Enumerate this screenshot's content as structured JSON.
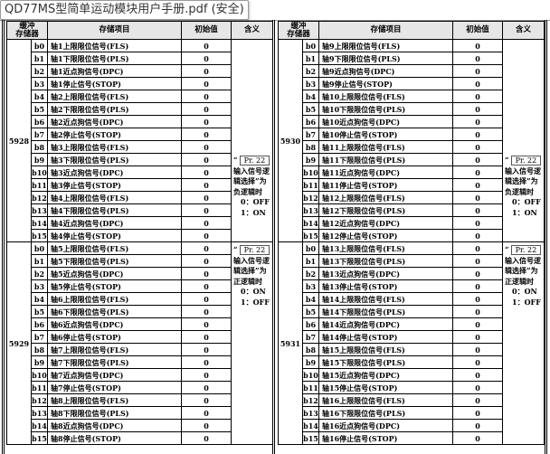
{
  "tooltip": "QD77MS型简单运动模块用户手册.pdf (安全)",
  "headers": {
    "register_line1": "缓冲",
    "register_line2": "存储器",
    "item": "存储项目",
    "init": "初始值",
    "meaning": "含义"
  },
  "notes": {
    "negative": {
      "quote_open": "“",
      "pr": "Pr. 22",
      "text": "输入信号逻辑选择”为负逻辑时",
      "v0": "0：OFF",
      "v1": "1：ON"
    },
    "positive": {
      "quote_open": "“",
      "pr": "Pr. 22",
      "text": "输入信号逻辑选择”为正逻辑时",
      "v0": "0：ON",
      "v1": "1：OFF"
    }
  },
  "tables": [
    {
      "blocks": [
        {
          "register": "5928",
          "rows": [
            {
              "bit": "b0",
              "item": "轴1上限限位信号(FLS)",
              "init": "0"
            },
            {
              "bit": "b1",
              "item": "轴1下限限位信号(PLS)",
              "init": "0"
            },
            {
              "bit": "b2",
              "item": "轴1近点狗信号(DPC)",
              "init": "0"
            },
            {
              "bit": "b3",
              "item": "轴1停止信号(STOP)",
              "init": "0"
            },
            {
              "bit": "b4",
              "item": "轴2上限限位信号(FLS)",
              "init": "0"
            },
            {
              "bit": "b5",
              "item": "轴2下限限位信号(PLS)",
              "init": "0"
            },
            {
              "bit": "b6",
              "item": "轴2近点狗信号(DPC)",
              "init": "0"
            },
            {
              "bit": "b7",
              "item": "轴2停止信号(STOP)",
              "init": "0"
            },
            {
              "bit": "b8",
              "item": "轴3上限限位信号(FLS)",
              "init": "0"
            },
            {
              "bit": "b9",
              "item": "轴3下限限位信号(PLS)",
              "init": "0"
            },
            {
              "bit": "b10",
              "item": "轴3近点狗信号(DPC)",
              "init": "0"
            },
            {
              "bit": "b11",
              "item": "轴3停止信号(STOP)",
              "init": "0"
            },
            {
              "bit": "b12",
              "item": "轴4上限限位信号(FLS)",
              "init": "0"
            },
            {
              "bit": "b13",
              "item": "轴4下限限位信号(PLS)",
              "init": "0"
            },
            {
              "bit": "b14",
              "item": "轴4近点狗信号(DPC)",
              "init": "0"
            },
            {
              "bit": "b15",
              "item": "轴4停止信号(STOP)",
              "init": "0"
            }
          ]
        },
        {
          "register": "5929",
          "rows": [
            {
              "bit": "b0",
              "item": "轴5上限限位信号(FLS)",
              "init": "0"
            },
            {
              "bit": "b1",
              "item": "轴5下限限位信号(PLS)",
              "init": "0"
            },
            {
              "bit": "b2",
              "item": "轴5近点狗信号(DPC)",
              "init": "0"
            },
            {
              "bit": "b3",
              "item": "轴5停止信号(STOP)",
              "init": "0"
            },
            {
              "bit": "b4",
              "item": "轴6上限限位信号(FLS)",
              "init": "0"
            },
            {
              "bit": "b5",
              "item": "轴6下限限位信号(PLS)",
              "init": "0"
            },
            {
              "bit": "b6",
              "item": "轴6近点狗信号(DPC)",
              "init": "0"
            },
            {
              "bit": "b7",
              "item": "轴6停止信号(STOP)",
              "init": "0"
            },
            {
              "bit": "b8",
              "item": "轴7上限限位信号(FLS)",
              "init": "0"
            },
            {
              "bit": "b9",
              "item": "轴7下限限位信号(PLS)",
              "init": "0"
            },
            {
              "bit": "b10",
              "item": "轴7近点狗信号(DPC)",
              "init": "0"
            },
            {
              "bit": "b11",
              "item": "轴7停止信号(STOP)",
              "init": "0"
            },
            {
              "bit": "b12",
              "item": "轴8上限限位信号(FLS)",
              "init": "0"
            },
            {
              "bit": "b13",
              "item": "轴8下限限位信号(PLS)",
              "init": "0"
            },
            {
              "bit": "b14",
              "item": "轴8近点狗信号(DPC)",
              "init": "0"
            },
            {
              "bit": "b15",
              "item": "轴8停止信号(STOP)",
              "init": "0"
            }
          ]
        }
      ]
    },
    {
      "blocks": [
        {
          "register": "5930",
          "rows": [
            {
              "bit": "b0",
              "item": "轴9上限限位信号(FLS)",
              "init": "0"
            },
            {
              "bit": "b1",
              "item": "轴9下限限位信号(PLS)",
              "init": "0"
            },
            {
              "bit": "b2",
              "item": "轴9近点狗信号(DPC)",
              "init": "0"
            },
            {
              "bit": "b3",
              "item": "轴9停止信号(STOP)",
              "init": "0"
            },
            {
              "bit": "b4",
              "item": "轴10上限限位信号(FLS)",
              "init": "0"
            },
            {
              "bit": "b5",
              "item": "轴10下限限位信号(PLS)",
              "init": "0"
            },
            {
              "bit": "b6",
              "item": "轴10近点狗信号(DPC)",
              "init": "0"
            },
            {
              "bit": "b7",
              "item": "轴10停止信号(STOP)",
              "init": "0"
            },
            {
              "bit": "b8",
              "item": "轴11上限限位信号(FLS)",
              "init": "0"
            },
            {
              "bit": "b9",
              "item": "轴11下限限位信号(PLS)",
              "init": "0"
            },
            {
              "bit": "b10",
              "item": "轴11近点狗信号(DPC)",
              "init": "0"
            },
            {
              "bit": "b11",
              "item": "轴11停止信号(STOP)",
              "init": "0"
            },
            {
              "bit": "b12",
              "item": "轴12上限限位信号(FLS)",
              "init": "0"
            },
            {
              "bit": "b13",
              "item": "轴12下限限位信号(PLS)",
              "init": "0"
            },
            {
              "bit": "b14",
              "item": "轴12近点狗信号(DPC)",
              "init": "0"
            },
            {
              "bit": "b15",
              "item": "轴12停止信号(STOP)",
              "init": "0"
            }
          ]
        },
        {
          "register": "5931",
          "rows": [
            {
              "bit": "b0",
              "item": "轴13上限限位信号(FLS)",
              "init": "0"
            },
            {
              "bit": "b1",
              "item": "轴13下限限位信号(PLS)",
              "init": "0"
            },
            {
              "bit": "b2",
              "item": "轴13近点狗信号(DPC)",
              "init": "0"
            },
            {
              "bit": "b3",
              "item": "轴13停止信号(STOP)",
              "init": "0"
            },
            {
              "bit": "b4",
              "item": "轴14上限限位信号(FLS)",
              "init": "0"
            },
            {
              "bit": "b5",
              "item": "轴14下限限位信号(PLS)",
              "init": "0"
            },
            {
              "bit": "b6",
              "item": "轴14近点狗信号(DPC)",
              "init": "0"
            },
            {
              "bit": "b7",
              "item": "轴14停止信号(STOP)",
              "init": "0"
            },
            {
              "bit": "b8",
              "item": "轴15上限限位信号(FLS)",
              "init": "0"
            },
            {
              "bit": "b9",
              "item": "轴15下限限位信号(PLS)",
              "init": "0"
            },
            {
              "bit": "b10",
              "item": "轴15近点狗信号(DPC)",
              "init": "0"
            },
            {
              "bit": "b11",
              "item": "轴15停止信号(STOP)",
              "init": "0"
            },
            {
              "bit": "b12",
              "item": "轴16上限限位信号(FLS)",
              "init": "0"
            },
            {
              "bit": "b13",
              "item": "轴16下限限位信号(PLS)",
              "init": "0"
            },
            {
              "bit": "b14",
              "item": "轴16近点狗信号(DPC)",
              "init": "0"
            },
            {
              "bit": "b15",
              "item": "轴16停止信号(STOP)",
              "init": "0"
            }
          ]
        }
      ]
    }
  ]
}
